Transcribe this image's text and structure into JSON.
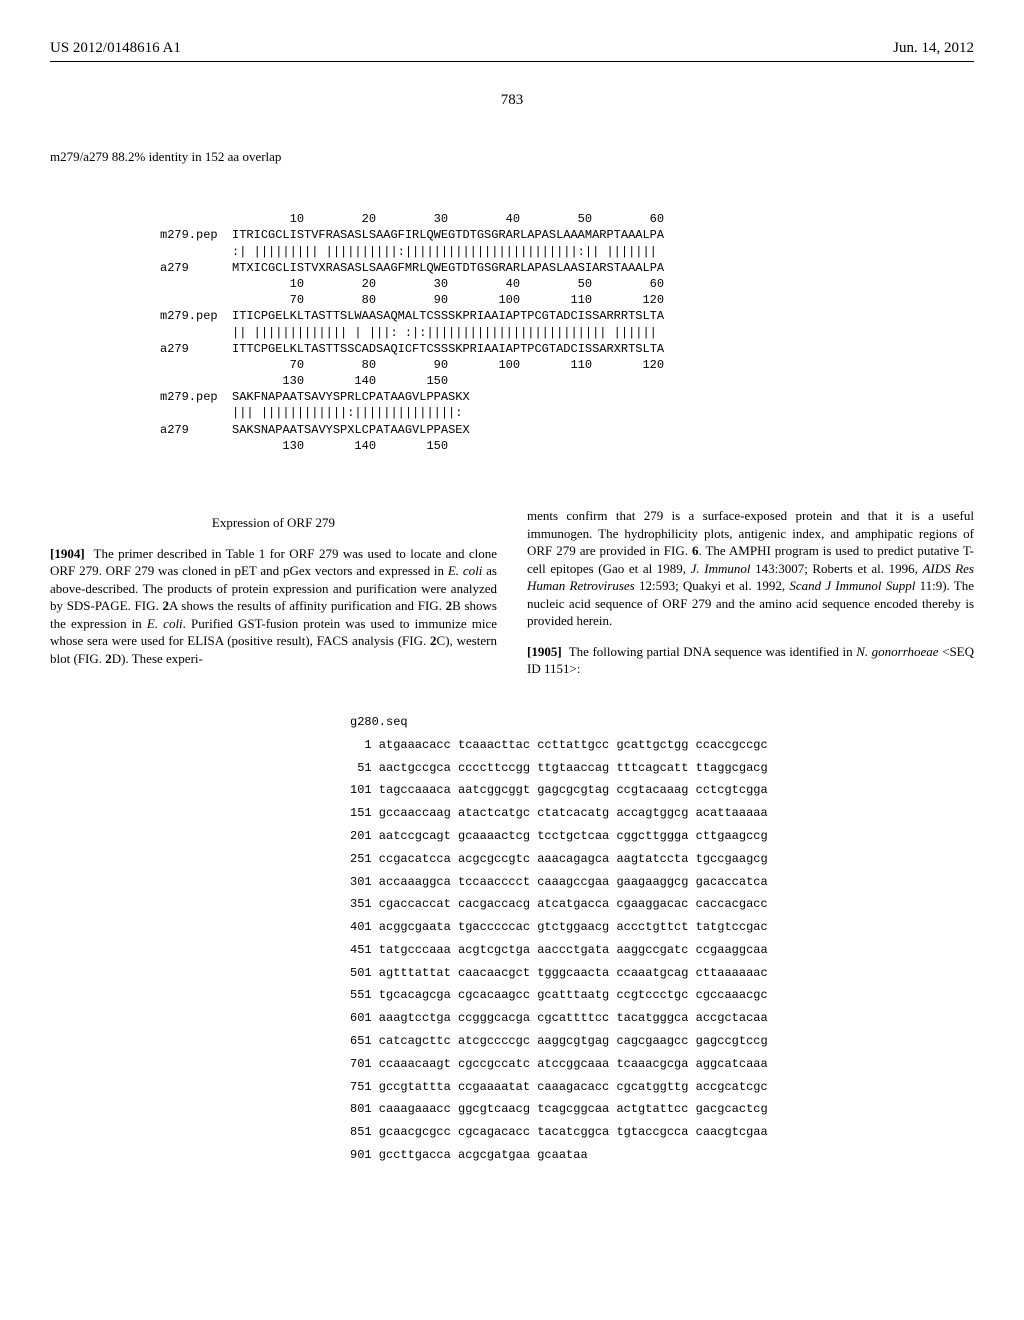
{
  "header": {
    "pub_number": "US 2012/0148616 A1",
    "pub_date": "Jun. 14, 2012"
  },
  "page_number": "783",
  "identity": "m279/a279 88.2% identity in 152 aa overlap",
  "alignment": {
    "ruler1_top": "        10        20        30        40        50        60",
    "row1_name": "m279.pep",
    "row1_seq": "ITRICGCLISTVFRASASLSAAGFIRLQWEGTDTGSGRARLAPASLAAAMARPTAAALPA",
    "row1_match": ":| ||||||||| ||||||||||:||||||||||||||||||||||||:|| |||||||",
    "row1b_name": "a279",
    "row1b_seq": "MTXICGCLISTVXRASASLSAAGFMRLQWEGTDTGSGRARLAPASLAASIARSTAAALPA",
    "ruler1_bot": "        10        20        30        40        50        60",
    "ruler2_top": "        70        80        90       100       110       120",
    "row2_name": "m279.pep",
    "row2_seq": "ITICPGELKLTASTTSLWAASAQMALTCSSSKPRIAAIAPTPCGTADCISSARRRTSLTA",
    "row2_match": "|| ||||||||||||| | |||: :|:||||||||||||||||||||||||| ||||||",
    "row2b_name": "a279",
    "row2b_seq": "ITTCPGELKLTASTTSSCADSAQICFTCSSSKPRIAAIAPTPCGTADCISSARXRTSLTA",
    "ruler2_bot": "        70        80        90       100       110       120",
    "ruler3_top": "       130       140       150",
    "row3_name": "m279.pep",
    "row3_seq": "SAKFNAPAATSAVYSPRLCPATAAGVLPPASKX",
    "row3_match": "||| ||||||||||||:||||||||||||||:",
    "row3b_name": "a279",
    "row3b_seq": "SAKSNAPAATSAVYSPXLCPATAAGVLPPASEX",
    "ruler3_bot": "       130       140       150"
  },
  "section_heading": "Expression of ORF 279",
  "left_para_num": "[1904]",
  "left_para": "The primer described in Table 1 for ORF 279 was used to locate and clone ORF 279. ORF 279 was cloned in pET and pGex vectors and expressed in ",
  "left_para_ital1": "E. coli",
  "left_para_cont1": " as above-described. The products of protein expression and purification were analyzed by SDS-PAGE. FIG. ",
  "left_para_b1": "2",
  "left_para_cont2": "A shows the results of affinity purification and FIG. ",
  "left_para_b2": "2",
  "left_para_cont3": "B shows the expression in ",
  "left_para_ital2": "E. coli",
  "left_para_cont4": ". Purified GST-fusion protein was used to immunize mice whose sera were used for ELISA (positive result), FACS analysis (FIG. ",
  "left_para_b3": "2",
  "left_para_cont5": "C), western blot (FIG. ",
  "left_para_b4": "2",
  "left_para_cont6": "D). These experi-",
  "right_para1": "ments confirm that 279 is a surface-exposed protein and that it is a useful immunogen. The hydrophilicity plots, antigenic index, and amphipatic regions of ORF 279 are provided in FIG. ",
  "right_para1_b": "6",
  "right_para1_cont": ". The AMPHI program is used to predict putative T-cell epitopes (Gao et al 1989, ",
  "right_ital1": "J. Immunol",
  "right_para1_cont2": " 143:3007; Roberts et al. 1996, ",
  "right_ital2": "AIDS Res Human Retroviruses",
  "right_para1_cont3": " 12:593; Quakyi et al. 1992, ",
  "right_ital3": "Scand J Immunol Suppl",
  "right_para1_cont4": " 11:9). The nucleic acid sequence of ORF 279 and the amino acid sequence encoded thereby is provided herein.",
  "right_para2_num": "[1905]",
  "right_para2": "The following partial DNA sequence was identified in ",
  "right_ital4": "N. gonorrhoeae",
  "right_para2_cont": " <SEQ ID 1151>:",
  "seq_name": "g280.seq",
  "seq_lines": [
    "  1 atgaaacacc tcaaacttac ccttattgcc gcattgctgg ccaccgccgc",
    " 51 aactgccgca ccccttccgg ttgtaaccag tttcagcatt ttaggcgacg",
    "101 tagccaaaca aatcggcggt gagcgcgtag ccgtacaaag cctcgtcgga",
    "151 gccaaccaag atactcatgc ctatcacatg accagtggcg acattaaaaa",
    "201 aatccgcagt gcaaaactcg tcctgctcaa cggcttggga cttgaagccg",
    "251 ccgacatcca acgcgccgtc aaacagagca aagtatccta tgccgaagcg",
    "301 accaaaggca tccaacccct caaagccgaa gaagaaggcg gacaccatca",
    "351 cgaccaccat cacgaccacg atcatgacca cgaaggacac caccacgacc",
    "401 acggcgaata tgacccccac gtctggaacg accctgttct tatgtccgac",
    "451 tatgcccaaa acgtcgctga aaccctgata aaggccgatc ccgaaggcaa",
    "501 agtttattat caacaacgct tgggcaacta ccaaatgcag cttaaaaaac",
    "551 tgcacagcga cgcacaagcc gcatttaatg ccgtccctgc cgccaaacgc",
    "601 aaagtcctga ccgggcacga cgcattttcc tacatgggca accgctacaa",
    "651 catcagcttc atcgccccgc aaggcgtgag cagcgaagcc gagccgtccg",
    "701 ccaaacaagt cgccgccatc atccggcaaa tcaaacgcga aggcatcaaa",
    "751 gccgtattta ccgaaaatat caaagacacc cgcatggttg accgcatcgc",
    "801 caaagaaacc ggcgtcaacg tcagcggcaa actgtattcc gacgcactcg",
    "851 gcaacgcgcc cgcagacacc tacatcggca tgtaccgcca caacgtcgaa",
    "901 gccttgacca acgcgatgaa gcaataa"
  ]
}
